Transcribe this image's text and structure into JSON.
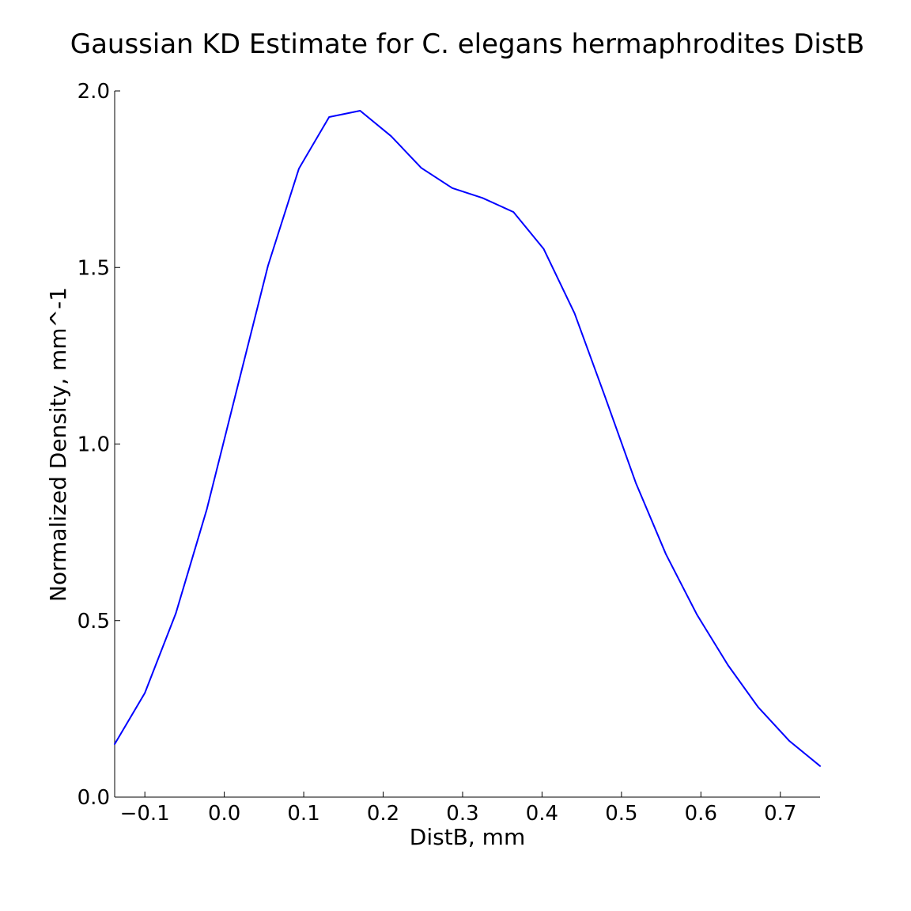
{
  "chart_data": {
    "type": "line",
    "title": "Gaussian KD Estimate for C. elegans hermaphrodites DistB",
    "xlabel": "DistB, mm",
    "ylabel": "Normalized Density, mm^-1",
    "xlim": [
      -0.138,
      0.75
    ],
    "ylim": [
      0.0,
      2.0
    ],
    "x_ticks": [
      -0.1,
      0.0,
      0.1,
      0.2,
      0.3,
      0.4,
      0.5,
      0.6,
      0.7
    ],
    "x_tick_labels": [
      "−0.1",
      "0.0",
      "0.1",
      "0.2",
      "0.3",
      "0.4",
      "0.5",
      "0.6",
      "0.7"
    ],
    "y_ticks": [
      0.0,
      0.5,
      1.0,
      1.5,
      2.0
    ],
    "y_tick_labels": [
      "0.0",
      "0.5",
      "1.0",
      "1.5",
      "2.0"
    ],
    "grid": false,
    "series": [
      {
        "color": "#0000ff",
        "x": [
          -0.138,
          -0.1,
          -0.061,
          -0.022,
          0.017,
          0.055,
          0.094,
          0.132,
          0.171,
          0.21,
          0.248,
          0.287,
          0.325,
          0.364,
          0.402,
          0.441,
          0.479,
          0.518,
          0.556,
          0.595,
          0.634,
          0.672,
          0.711,
          0.75
        ],
        "y": [
          0.15,
          0.295,
          0.52,
          0.815,
          1.165,
          1.505,
          1.78,
          1.926,
          1.944,
          1.872,
          1.782,
          1.725,
          1.697,
          1.657,
          1.553,
          1.37,
          1.136,
          0.89,
          0.688,
          0.517,
          0.374,
          0.255,
          0.16,
          0.088
        ]
      }
    ]
  }
}
